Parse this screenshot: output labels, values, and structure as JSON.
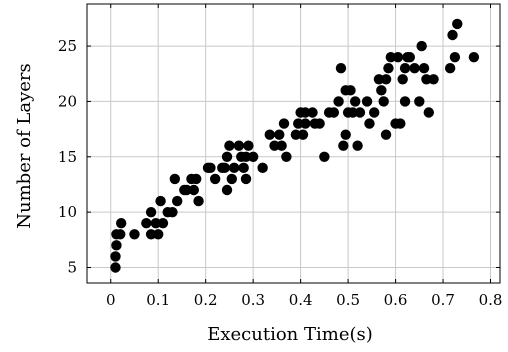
{
  "chart_data": {
    "type": "scatter",
    "title": "",
    "xlabel": "Execution Time(s)",
    "ylabel": "Number of Layers",
    "xlim": [
      -0.05,
      0.82
    ],
    "ylim": [
      3.6,
      28.8
    ],
    "xticks": [
      0,
      0.1,
      0.2,
      0.3,
      0.4,
      0.5,
      0.6,
      0.7,
      0.8
    ],
    "xtick_labels": [
      "0",
      "0.1",
      "0.2",
      "0.3",
      "0.4",
      "0.5",
      "0.6",
      "0.7",
      "0.8"
    ],
    "yticks": [
      5,
      10,
      15,
      20,
      25
    ],
    "ytick_labels": [
      "5",
      "10",
      "15",
      "20",
      "25"
    ],
    "grid": true,
    "marker_color": "#000000",
    "points": [
      [
        0.01,
        5
      ],
      [
        0.01,
        6
      ],
      [
        0.012,
        7
      ],
      [
        0.012,
        8
      ],
      [
        0.02,
        8
      ],
      [
        0.022,
        9
      ],
      [
        0.05,
        8
      ],
      [
        0.075,
        9
      ],
      [
        0.085,
        10
      ],
      [
        0.085,
        8
      ],
      [
        0.095,
        9
      ],
      [
        0.1,
        8
      ],
      [
        0.105,
        11
      ],
      [
        0.11,
        9
      ],
      [
        0.12,
        10
      ],
      [
        0.13,
        10
      ],
      [
        0.135,
        13
      ],
      [
        0.14,
        11
      ],
      [
        0.155,
        12
      ],
      [
        0.16,
        12
      ],
      [
        0.17,
        13
      ],
      [
        0.175,
        12
      ],
      [
        0.18,
        13
      ],
      [
        0.185,
        11
      ],
      [
        0.205,
        14
      ],
      [
        0.21,
        14
      ],
      [
        0.22,
        13
      ],
      [
        0.235,
        14
      ],
      [
        0.24,
        14
      ],
      [
        0.245,
        15
      ],
      [
        0.245,
        12
      ],
      [
        0.25,
        16
      ],
      [
        0.255,
        13
      ],
      [
        0.26,
        14
      ],
      [
        0.27,
        16
      ],
      [
        0.275,
        15
      ],
      [
        0.28,
        14
      ],
      [
        0.285,
        15
      ],
      [
        0.285,
        13
      ],
      [
        0.29,
        16
      ],
      [
        0.3,
        15
      ],
      [
        0.32,
        14
      ],
      [
        0.335,
        17
      ],
      [
        0.345,
        16
      ],
      [
        0.355,
        17
      ],
      [
        0.36,
        16
      ],
      [
        0.365,
        18
      ],
      [
        0.37,
        15
      ],
      [
        0.39,
        17
      ],
      [
        0.395,
        18
      ],
      [
        0.4,
        19
      ],
      [
        0.405,
        17
      ],
      [
        0.41,
        19
      ],
      [
        0.41,
        18
      ],
      [
        0.425,
        19
      ],
      [
        0.43,
        18
      ],
      [
        0.44,
        18
      ],
      [
        0.45,
        15
      ],
      [
        0.46,
        19
      ],
      [
        0.47,
        19
      ],
      [
        0.48,
        20
      ],
      [
        0.485,
        23
      ],
      [
        0.49,
        16
      ],
      [
        0.495,
        17
      ],
      [
        0.495,
        21
      ],
      [
        0.5,
        19
      ],
      [
        0.505,
        21
      ],
      [
        0.51,
        19
      ],
      [
        0.515,
        20
      ],
      [
        0.52,
        16
      ],
      [
        0.525,
        19
      ],
      [
        0.54,
        20
      ],
      [
        0.545,
        18
      ],
      [
        0.555,
        19
      ],
      [
        0.565,
        22
      ],
      [
        0.57,
        21
      ],
      [
        0.575,
        20
      ],
      [
        0.58,
        22
      ],
      [
        0.58,
        17
      ],
      [
        0.585,
        23
      ],
      [
        0.59,
        24
      ],
      [
        0.6,
        18
      ],
      [
        0.605,
        24
      ],
      [
        0.61,
        18
      ],
      [
        0.615,
        22
      ],
      [
        0.62,
        20
      ],
      [
        0.62,
        23
      ],
      [
        0.625,
        24
      ],
      [
        0.63,
        24
      ],
      [
        0.64,
        23
      ],
      [
        0.65,
        20
      ],
      [
        0.655,
        25
      ],
      [
        0.66,
        23
      ],
      [
        0.665,
        22
      ],
      [
        0.67,
        19
      ],
      [
        0.68,
        22
      ],
      [
        0.715,
        23
      ],
      [
        0.72,
        26
      ],
      [
        0.725,
        24
      ],
      [
        0.73,
        27
      ],
      [
        0.765,
        24
      ]
    ]
  }
}
